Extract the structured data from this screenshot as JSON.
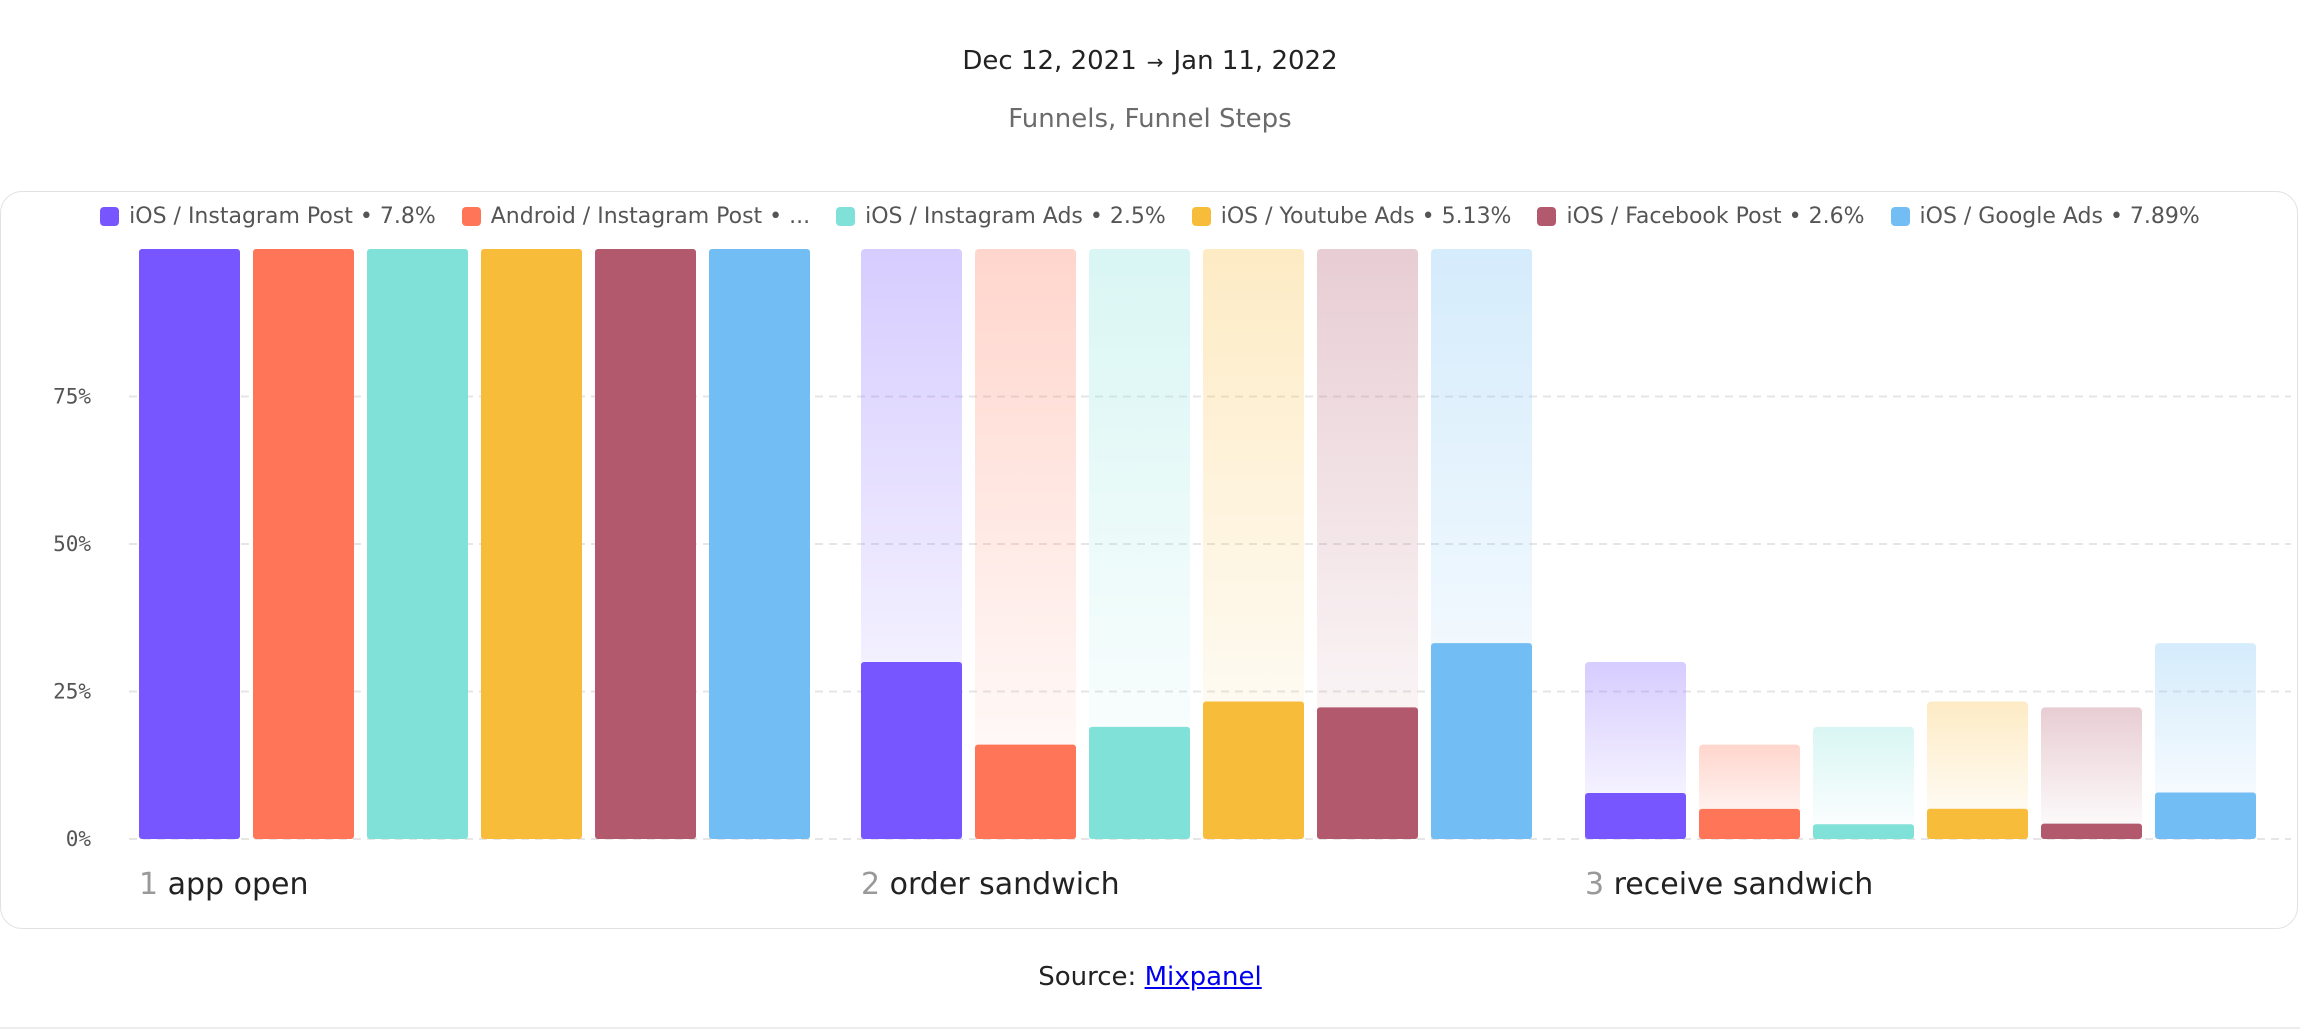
{
  "header": {
    "date_start": "Dec 12, 2021",
    "date_arrow": "→",
    "date_end": "Jan 11, 2022",
    "subtitle": "Funnels, Funnel Steps"
  },
  "source": {
    "label": "Source:",
    "link_text": "Mixpanel"
  },
  "colors": [
    "#7856ff",
    "#ff7557",
    "#80e1d9",
    "#f8bc3b",
    "#b2596e",
    "#72bef4"
  ],
  "chart_data": {
    "type": "bar",
    "legend_position": "top",
    "grid": true,
    "ylim": [
      0,
      100
    ],
    "yticks": [
      "0%",
      "25%",
      "50%",
      "75%"
    ],
    "categories": [
      "app open",
      "order sandwich",
      "receive sandwich"
    ],
    "step_numbers": [
      "1",
      "2",
      "3"
    ],
    "series": [
      {
        "name": "iOS / Instagram Post • 7.8%",
        "values": [
          100,
          30,
          7.8
        ]
      },
      {
        "name": "Android / Instagram Post • ...",
        "values": [
          100,
          16,
          5.1
        ]
      },
      {
        "name": "iOS / Instagram Ads • 2.5%",
        "values": [
          100,
          19,
          2.5
        ]
      },
      {
        "name": "iOS / Youtube Ads • 5.13%",
        "values": [
          100,
          23.3,
          5.13
        ]
      },
      {
        "name": "iOS / Facebook Post • 2.6%",
        "values": [
          100,
          22.3,
          2.6
        ]
      },
      {
        "name": "iOS / Google Ads • 7.89%",
        "values": [
          100,
          33.2,
          7.89
        ]
      }
    ]
  }
}
